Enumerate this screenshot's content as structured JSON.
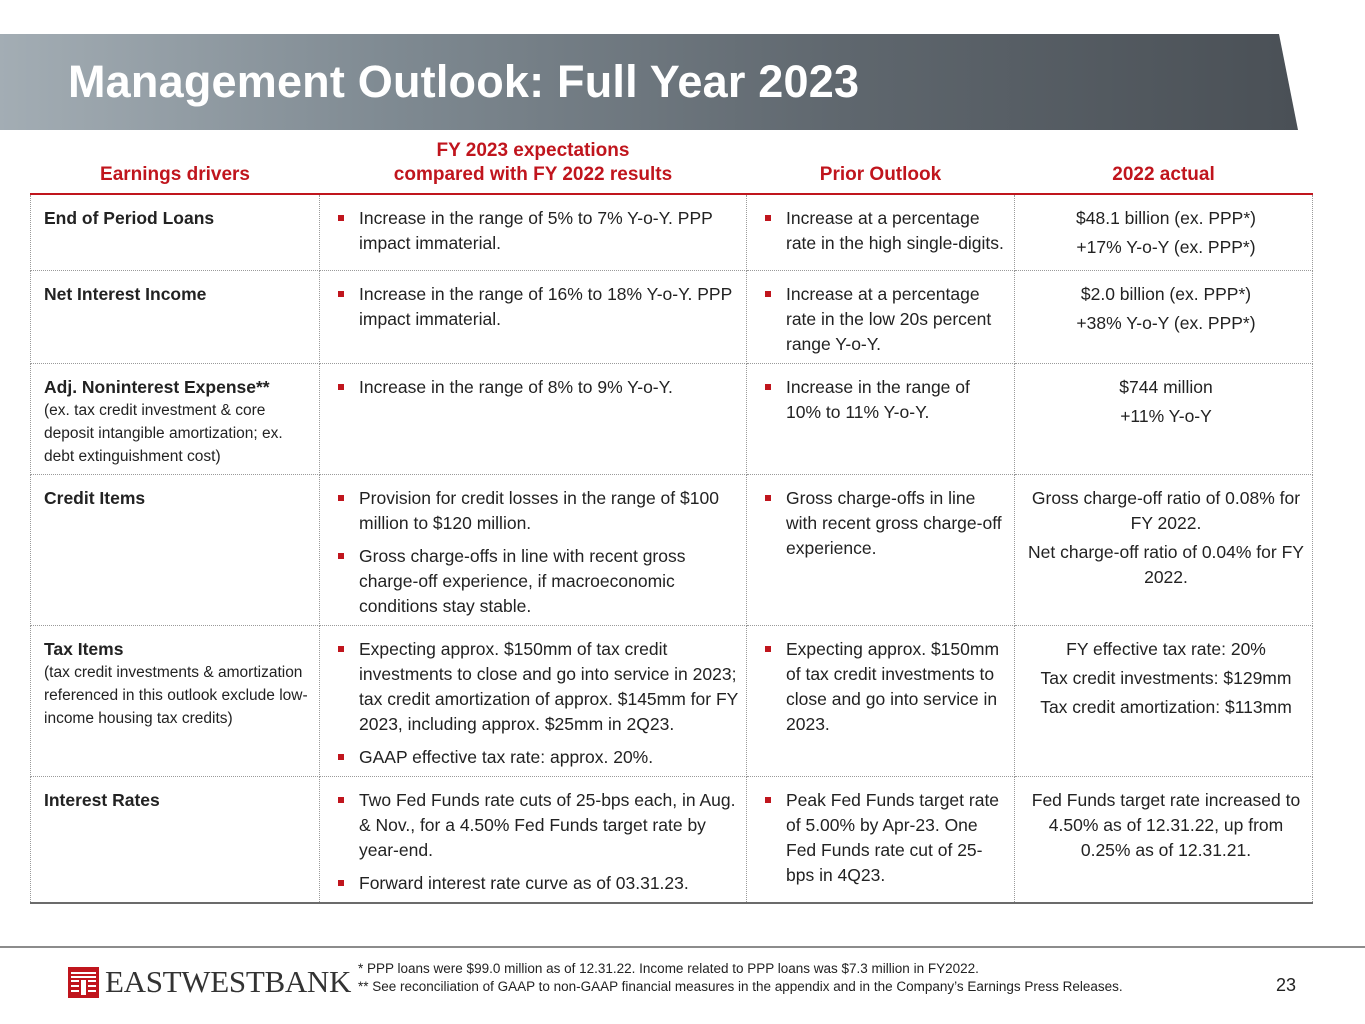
{
  "title": "Management Outlook: Full Year 2023",
  "accent_color": "#c0151d",
  "columns": {
    "drivers": "Earnings drivers",
    "expectations_line1": "FY 2023 expectations",
    "expectations_line2": "compared with FY 2022 results",
    "prior": "Prior Outlook",
    "actual": "2022 actual"
  },
  "rows": [
    {
      "driver": "End of Period Loans",
      "expectations": [
        "Increase in the range of 5% to 7% Y-o-Y. PPP impact immaterial."
      ],
      "prior": [
        "Increase at a percentage rate in the high single-digits."
      ],
      "actual": [
        "$48.1 billion (ex. PPP*)",
        "+17% Y-o-Y (ex. PPP*)"
      ]
    },
    {
      "driver": "Net Interest Income",
      "expectations": [
        "Increase in the range of 16% to 18% Y-o-Y. PPP impact immaterial."
      ],
      "prior": [
        "Increase at a percentage rate in the low 20s percent range Y-o-Y."
      ],
      "actual": [
        "$2.0 billion (ex. PPP*)",
        "+38% Y-o-Y (ex. PPP*)"
      ]
    },
    {
      "driver": "Adj. Noninterest Expense**",
      "driver_note": "(ex. tax credit investment & core deposit intangible amortization; ex. debt extinguishment cost)",
      "expectations": [
        "Increase in the range of 8% to 9% Y-o-Y."
      ],
      "prior": [
        "Increase in the range of 10% to 11% Y-o-Y."
      ],
      "actual": [
        "$744 million",
        "+11% Y-o-Y"
      ]
    },
    {
      "driver": "Credit Items",
      "expectations": [
        "Provision for credit losses in the range of $100 million to $120 million.",
        "Gross charge-offs in line with recent gross charge-off experience, if macroeconomic conditions stay stable."
      ],
      "prior": [
        "Gross charge-offs in line with recent gross charge-off experience."
      ],
      "actual": [
        "Gross charge-off ratio of 0.08% for FY 2022.",
        "Net charge-off ratio of 0.04% for FY 2022."
      ]
    },
    {
      "driver": "Tax Items",
      "driver_note": "(tax credit investments & amortization referenced in this outlook exclude low-income housing tax credits)",
      "expectations": [
        "Expecting approx. $150mm of tax credit investments to close and go into service in 2023; tax credit amortization of approx. $145mm for FY 2023, including approx. $25mm in 2Q23.",
        "GAAP effective tax rate: approx. 20%."
      ],
      "prior": [
        "Expecting approx. $150mm of tax credit investments to close and go into service in 2023."
      ],
      "actual": [
        "FY effective tax rate: 20%",
        "Tax credit investments: $129mm",
        "Tax credit amortization: $113mm"
      ]
    },
    {
      "driver": "Interest Rates",
      "expectations": [
        "Two Fed Funds rate cuts of 25-bps each, in Aug. & Nov., for a 4.50% Fed Funds target rate by year-end.",
        "Forward interest rate curve as of 03.31.23."
      ],
      "prior": [
        "Peak Fed Funds target rate of 5.00% by Apr-23. One Fed Funds rate cut of 25-bps in 4Q23."
      ],
      "actual": [
        "Fed Funds target rate increased to 4.50% as of 12.31.22, up from 0.25% as of 12.31.21."
      ]
    }
  ],
  "footnotes": {
    "ppp": "* PPP loans were $99.0 million as of 12.31.22. Income related to PPP loans was $7.3 million in FY2022.",
    "non_gaap": "** See reconciliation of GAAP to non-GAAP financial measures in the appendix and in the Company’s Earnings Press Releases."
  },
  "logo_text": "EASTWESTBANK",
  "page_number": "23"
}
